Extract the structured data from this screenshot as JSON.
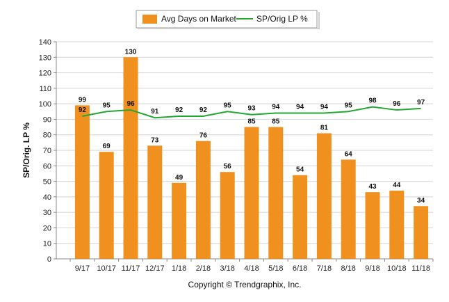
{
  "chart_data": {
    "type": "bar",
    "categories": [
      "9/17",
      "10/17",
      "11/17",
      "12/17",
      "1/18",
      "2/18",
      "3/18",
      "4/18",
      "5/18",
      "6/18",
      "7/18",
      "8/18",
      "9/18",
      "10/18",
      "11/18"
    ],
    "series": [
      {
        "name": "Avg Days on Market",
        "type": "bar",
        "color": "#F0901E",
        "values": [
          99,
          69,
          130,
          73,
          49,
          76,
          56,
          85,
          85,
          54,
          81,
          64,
          43,
          44,
          34
        ]
      },
      {
        "name": "SP/Orig LP %",
        "type": "line",
        "color": "#22A832",
        "values": [
          92,
          95,
          96,
          91,
          92,
          92,
          95,
          93,
          94,
          94,
          94,
          95,
          98,
          96,
          97
        ]
      }
    ],
    "ylabel": "SP/Orig. LP %",
    "xlabel": "",
    "ylim": [
      0,
      140
    ],
    "yticks": [
      0,
      10,
      20,
      30,
      40,
      50,
      60,
      70,
      80,
      90,
      100,
      110,
      120,
      130,
      140
    ],
    "grid": true,
    "legend_position": "top-center"
  },
  "footer": {
    "copyright": "Copyright © Trendgraphix, Inc."
  }
}
